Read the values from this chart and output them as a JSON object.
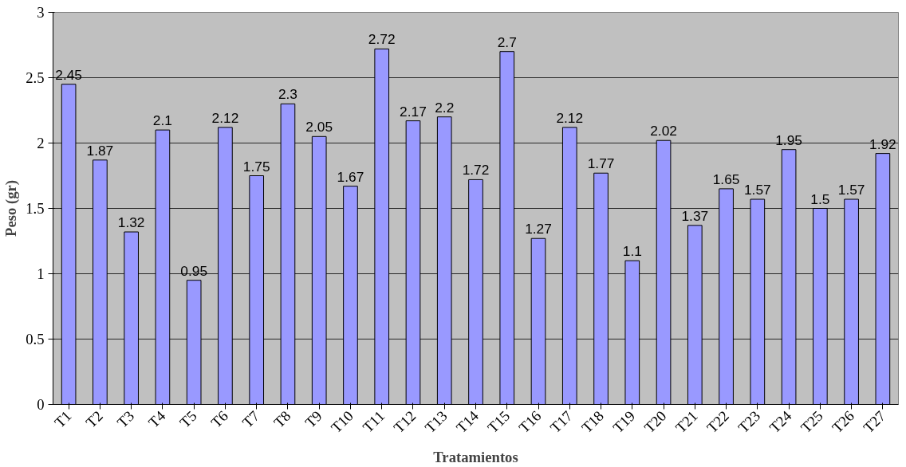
{
  "chart_data": {
    "type": "bar",
    "xlabel": "Tratamientos",
    "ylabel": "Peso (gr)",
    "categories": [
      "T1",
      "T2",
      "T3",
      "T4",
      "T5",
      "T6",
      "T7",
      "T8",
      "T9",
      "T10",
      "T11",
      "T12",
      "T13",
      "T14",
      "T15",
      "T16",
      "T17",
      "T18",
      "T19",
      "T20",
      "T21",
      "T22",
      "T23",
      "T24",
      "T25",
      "T26",
      "T27"
    ],
    "values": [
      2.45,
      1.87,
      1.32,
      2.1,
      0.95,
      2.12,
      1.75,
      2.3,
      2.05,
      1.67,
      2.72,
      2.17,
      2.2,
      1.72,
      2.7,
      1.27,
      2.12,
      1.77,
      1.1,
      2.02,
      1.37,
      1.65,
      1.57,
      1.95,
      1.5,
      1.57,
      1.92
    ],
    "color": "#9999ff",
    "ylim": [
      0,
      3
    ],
    "yticks": [
      0,
      0.5,
      1,
      1.5,
      2,
      2.5,
      3
    ],
    "grid": "y",
    "data_labels": true
  }
}
